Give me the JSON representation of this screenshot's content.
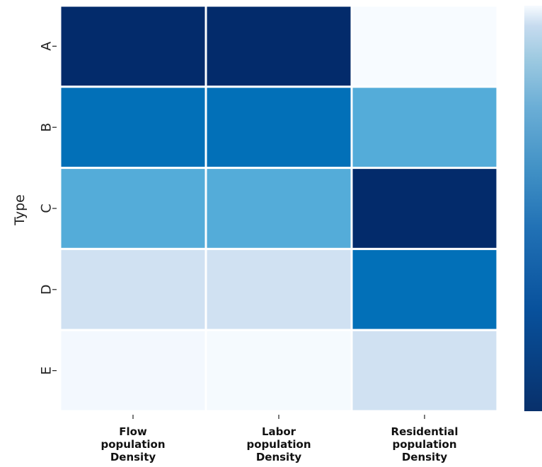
{
  "chart_data": {
    "type": "heatmap",
    "ylabel": "Type",
    "xlabel": "",
    "rows": [
      "A",
      "B",
      "C",
      "D",
      "E"
    ],
    "columns": [
      [
        "Flow",
        "population",
        "Density"
      ],
      [
        "Labor",
        "population",
        "Density"
      ],
      [
        "Residential",
        "population",
        "Density"
      ]
    ],
    "values": [
      [
        1.0,
        1.0,
        0.0
      ],
      [
        0.75,
        0.75,
        0.5
      ],
      [
        0.5,
        0.5,
        1.0
      ],
      [
        0.2,
        0.2,
        0.75
      ],
      [
        0.02,
        0.01,
        0.2
      ]
    ],
    "colormap": "Blues",
    "colorbar": true
  }
}
